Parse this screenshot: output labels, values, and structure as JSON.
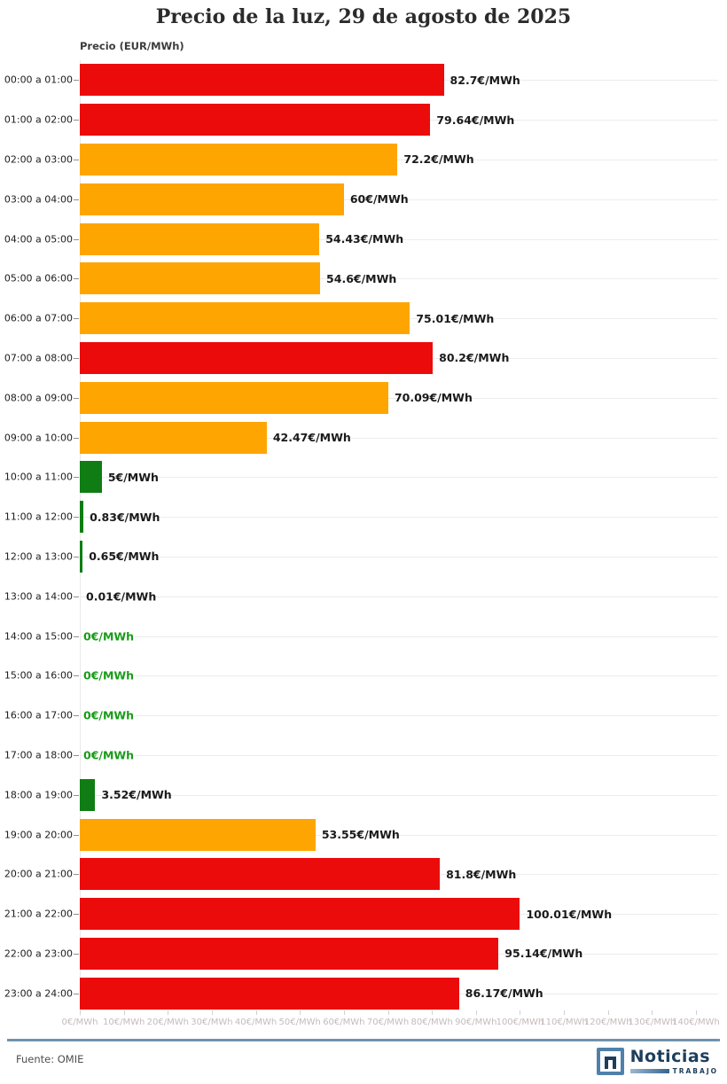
{
  "title": "Precio de la luz, 29 de agosto de 2025",
  "y_axis_title": "Precio (EUR/MWh)",
  "source": "Fuente: OMIE",
  "logo": {
    "name": "Noticias",
    "sub": "TRABAJO"
  },
  "colors": {
    "red": "#ec0b0b",
    "orange": "#ffa502",
    "green": "#0f7d13",
    "zero_label_green": "#189c18",
    "divider_blue": "#6f93ad",
    "logo_navy": "#1d3e5c",
    "logo_steel_blue": "#4f81ab"
  },
  "chart_data": {
    "type": "bar",
    "orientation": "horizontal",
    "title": "Precio de la luz, 29 de agosto de 2025",
    "xlabel": "",
    "ylabel": "Precio (EUR/MWh)",
    "xlim": [
      0,
      145
    ],
    "grid": true,
    "x_tick_labels": [
      "0€/MWh",
      "10€/MWh",
      "20€/MWh",
      "30€/MWh",
      "40€/MWh",
      "50€/MWh",
      "60€/MWh",
      "70€/MWh",
      "80€/MWh",
      "90€/MWh",
      "100€/MWh",
      "110€/MWh",
      "120€/MWh",
      "130€/MWh",
      "140€/MWh"
    ],
    "x_tick_values": [
      0,
      10,
      20,
      30,
      40,
      50,
      60,
      70,
      80,
      90,
      100,
      110,
      120,
      130,
      140
    ],
    "categories": [
      "00:00 a 01:00",
      "01:00 a 02:00",
      "02:00 a 03:00",
      "03:00 a 04:00",
      "04:00 a 05:00",
      "05:00 a 06:00",
      "06:00 a 07:00",
      "07:00 a 08:00",
      "08:00 a 09:00",
      "09:00 a 10:00",
      "10:00 a 11:00",
      "11:00 a 12:00",
      "12:00 a 13:00",
      "13:00 a 14:00",
      "14:00 a 15:00",
      "15:00 a 16:00",
      "16:00 a 17:00",
      "17:00 a 18:00",
      "18:00 a 19:00",
      "19:00 a 20:00",
      "20:00 a 21:00",
      "21:00 a 22:00",
      "22:00 a 23:00",
      "23:00 a 24:00"
    ],
    "values": [
      82.7,
      79.64,
      72.2,
      60,
      54.43,
      54.6,
      75.01,
      80.2,
      70.09,
      42.47,
      5,
      0.83,
      0.65,
      0.01,
      0,
      0,
      0,
      0,
      3.52,
      53.55,
      81.8,
      100.01,
      95.14,
      86.17
    ],
    "value_labels": [
      "82.7€/MWh",
      "79.64€/MWh",
      "72.2€/MWh",
      "60€/MWh",
      "54.43€/MWh",
      "54.6€/MWh",
      "75.01€/MWh",
      "80.2€/MWh",
      "70.09€/MWh",
      "42.47€/MWh",
      "5€/MWh",
      "0.83€/MWh",
      "0.65€/MWh",
      "0.01€/MWh",
      "0€/MWh",
      "0€/MWh",
      "0€/MWh",
      "0€/MWh",
      "3.52€/MWh",
      "53.55€/MWh",
      "81.8€/MWh",
      "100.01€/MWh",
      "95.14€/MWh",
      "86.17€/MWh"
    ],
    "bar_colors": [
      "red",
      "red",
      "orange",
      "orange",
      "orange",
      "orange",
      "orange",
      "red",
      "orange",
      "orange",
      "green",
      "green",
      "green",
      "green",
      "green",
      "green",
      "green",
      "green",
      "green",
      "orange",
      "red",
      "red",
      "red",
      "red"
    ]
  }
}
